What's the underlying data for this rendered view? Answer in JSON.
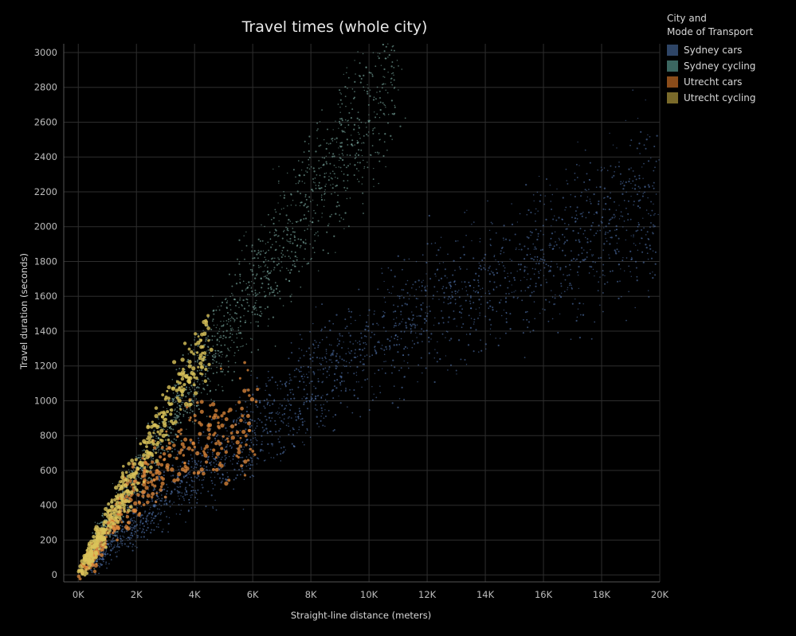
{
  "chart_data": {
    "type": "scatter",
    "title": "Travel times (whole city)",
    "xlabel": "Straight-line distance (meters)",
    "ylabel": "Travel duration (seconds)",
    "xlim": [
      -500,
      20000
    ],
    "ylim": [
      -40,
      3050
    ],
    "x_ticks": [
      {
        "value": 0,
        "label": "0K"
      },
      {
        "value": 2000,
        "label": "2K"
      },
      {
        "value": 4000,
        "label": "4K"
      },
      {
        "value": 6000,
        "label": "6K"
      },
      {
        "value": 8000,
        "label": "8K"
      },
      {
        "value": 10000,
        "label": "10K"
      },
      {
        "value": 12000,
        "label": "12K"
      },
      {
        "value": 14000,
        "label": "14K"
      },
      {
        "value": 16000,
        "label": "16K"
      },
      {
        "value": 18000,
        "label": "18K"
      },
      {
        "value": 20000,
        "label": "20K"
      }
    ],
    "y_ticks": [
      {
        "value": 0,
        "label": "0"
      },
      {
        "value": 200,
        "label": "200"
      },
      {
        "value": 400,
        "label": "400"
      },
      {
        "value": 600,
        "label": "600"
      },
      {
        "value": 800,
        "label": "800"
      },
      {
        "value": 1000,
        "label": "1000"
      },
      {
        "value": 1200,
        "label": "1200"
      },
      {
        "value": 1400,
        "label": "1400"
      },
      {
        "value": 1600,
        "label": "1600"
      },
      {
        "value": 1800,
        "label": "1800"
      },
      {
        "value": 2000,
        "label": "2000"
      },
      {
        "value": 2200,
        "label": "2200"
      },
      {
        "value": 2400,
        "label": "2400"
      },
      {
        "value": 2600,
        "label": "2600"
      },
      {
        "value": 2800,
        "label": "2800"
      },
      {
        "value": 3000,
        "label": "3000"
      }
    ],
    "grid": true,
    "legend": {
      "title": "City and\nMode of Transport",
      "position": "top-right"
    },
    "series": [
      {
        "name": "Sydney cars",
        "color": "#5a7fbf",
        "swatch": "#2e4566",
        "x": [
          500,
          1000,
          1500,
          2000,
          2500,
          3000,
          3500,
          4000,
          4500,
          5000,
          6000,
          7000,
          8000,
          9000,
          10000,
          11000,
          12000,
          13000,
          14000,
          15000,
          16000,
          17000,
          18000,
          19000,
          20000
        ],
        "y": [
          80,
          160,
          240,
          310,
          380,
          450,
          510,
          570,
          620,
          680,
          800,
          930,
          1070,
          1200,
          1330,
          1430,
          1520,
          1600,
          1680,
          1750,
          1830,
          1900,
          1980,
          2060,
          2140
        ],
        "spread": [
          40,
          50,
          60,
          70,
          80,
          90,
          100,
          110,
          115,
          120,
          130,
          140,
          150,
          160,
          170,
          180,
          190,
          200,
          210,
          220,
          230,
          240,
          250,
          260,
          270
        ]
      },
      {
        "name": "Sydney cycling",
        "color": "#7fb0a6",
        "swatch": "#3b6660",
        "x": [
          500,
          1000,
          1500,
          2000,
          2500,
          3000,
          3500,
          4000,
          4500,
          5000,
          5500,
          6000,
          6500,
          7000,
          7500,
          8000,
          8500,
          9000,
          9500,
          10000,
          10500,
          11000
        ],
        "y": [
          160,
          300,
          420,
          560,
          700,
          830,
          970,
          1100,
          1230,
          1370,
          1500,
          1640,
          1770,
          1900,
          2030,
          2160,
          2300,
          2430,
          2570,
          2700,
          2840,
          2980
        ],
        "spread": [
          50,
          60,
          70,
          80,
          90,
          100,
          110,
          120,
          130,
          140,
          150,
          160,
          170,
          180,
          190,
          200,
          210,
          220,
          230,
          240,
          250,
          260
        ]
      },
      {
        "name": "Utrecht cars",
        "color": "#e08a3c",
        "swatch": "#8a4c1a",
        "x": [
          200,
          500,
          1000,
          1500,
          2000,
          2500,
          3000,
          3500,
          4000,
          4500,
          5000,
          5500,
          6000
        ],
        "y": [
          40,
          120,
          250,
          370,
          470,
          560,
          640,
          710,
          770,
          800,
          820,
          840,
          860
        ],
        "spread": [
          30,
          40,
          60,
          70,
          80,
          90,
          100,
          110,
          120,
          120,
          130,
          130,
          140
        ]
      },
      {
        "name": "Utrecht cycling",
        "color": "#d9c35a",
        "swatch": "#7a6a2a",
        "x": [
          200,
          500,
          1000,
          1500,
          2000,
          2500,
          3000,
          3500,
          4000,
          4500
        ],
        "y": [
          60,
          150,
          300,
          450,
          600,
          760,
          920,
          1080,
          1230,
          1380
        ],
        "spread": [
          30,
          40,
          55,
          65,
          75,
          85,
          95,
          105,
          115,
          120
        ]
      }
    ]
  }
}
